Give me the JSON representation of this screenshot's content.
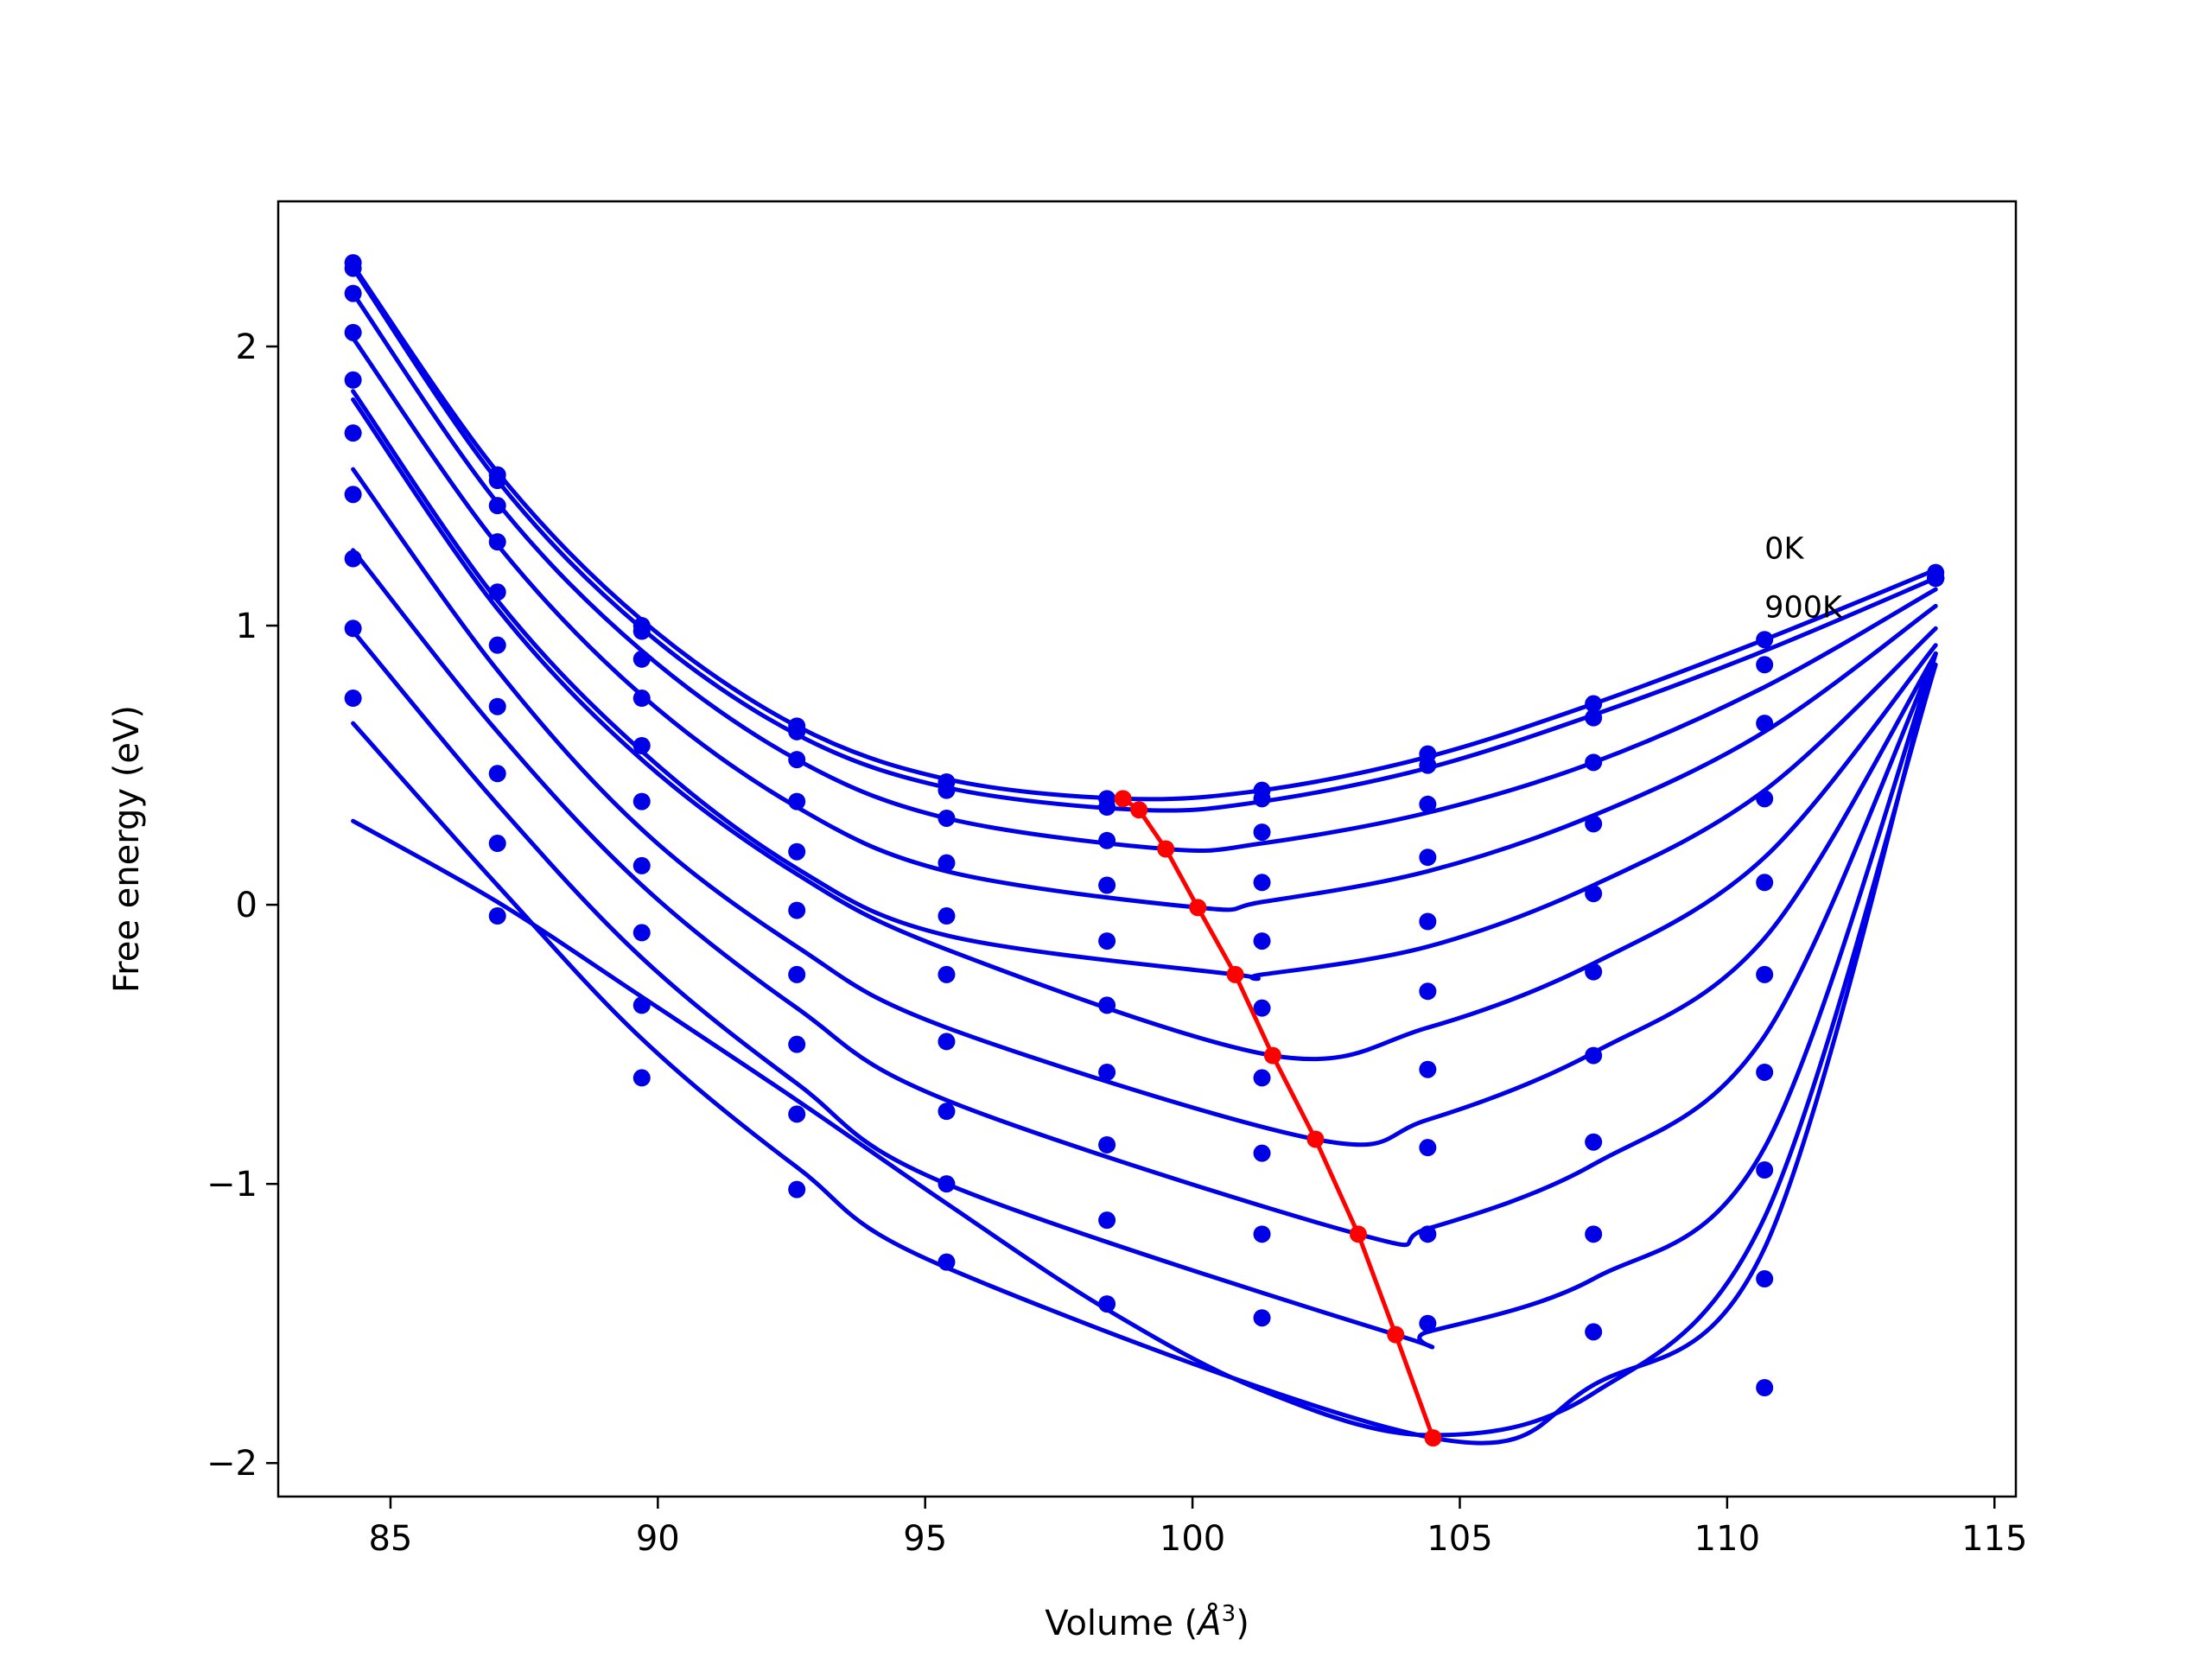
{
  "chart_data": {
    "type": "scatter",
    "title": "",
    "xlabel": "Volume (",
    "xlabel_symbol": "Å",
    "xlabel_exp": "3",
    "xlabel_close": ")",
    "ylabel": "Free energy (eV)",
    "xlim": [
      82.9,
      115.4
    ],
    "ylim": [
      -2.12,
      2.52
    ],
    "xticks": [
      85,
      90,
      95,
      100,
      105,
      110,
      115
    ],
    "yticks": [
      -2,
      -1,
      0,
      1,
      2
    ],
    "ytick_labels": [
      "−2",
      "−1",
      "0",
      "1",
      "2"
    ],
    "grid": false,
    "legend": "none",
    "annotations": [
      {
        "text": "0K",
        "x": 110.7,
        "y": 1.24
      },
      {
        "text": "900K",
        "x": 110.7,
        "y": 1.03
      }
    ],
    "colors": {
      "data": "#0000e6",
      "fit": "#0000e6",
      "minima": "#ff0000"
    },
    "volumes": [
      84.3,
      87.0,
      89.7,
      92.6,
      95.4,
      98.4,
      101.3,
      104.4,
      107.5,
      110.7,
      113.9
    ],
    "series": [
      {
        "values": [
          2.3,
          1.54,
          1.0,
          0.64,
          0.44,
          0.38,
          0.41,
          0.54,
          0.72,
          0.95,
          1.19
        ],
        "fit_curve": [
          [
            84.3,
            2.29
          ],
          [
            87.0,
            1.55
          ],
          [
            89.7,
            1.02
          ],
          [
            92.6,
            0.64
          ],
          [
            95.4,
            0.45
          ],
          [
            98.7,
            0.38
          ],
          [
            101.3,
            0.41
          ],
          [
            104.4,
            0.53
          ],
          [
            107.5,
            0.72
          ],
          [
            110.7,
            0.95
          ],
          [
            113.9,
            1.2
          ]
        ],
        "minimum": [
          98.7,
          0.38
        ]
      },
      {
        "values": [
          2.28,
          1.52,
          0.98,
          0.62,
          0.41,
          0.35,
          0.38,
          0.5,
          0.67,
          0.86,
          1.17
        ],
        "fit_curve": [
          [
            84.3,
            2.28
          ],
          [
            87.0,
            1.52
          ],
          [
            89.7,
            0.99
          ],
          [
            92.6,
            0.61
          ],
          [
            95.4,
            0.42
          ],
          [
            99.0,
            0.34
          ],
          [
            101.3,
            0.37
          ],
          [
            104.4,
            0.49
          ],
          [
            107.5,
            0.68
          ],
          [
            110.7,
            0.91
          ],
          [
            113.9,
            1.17
          ]
        ],
        "minimum": [
          99.0,
          0.34
        ]
      },
      {
        "values": [
          2.19,
          1.43,
          0.88,
          0.52,
          0.31,
          0.23,
          0.26,
          0.36,
          0.51,
          0.65,
          1.17
        ],
        "fit_curve": [
          [
            84.3,
            2.19
          ],
          [
            87.0,
            1.44
          ],
          [
            89.7,
            0.91
          ],
          [
            92.6,
            0.52
          ],
          [
            95.4,
            0.31
          ],
          [
            99.5,
            0.2
          ],
          [
            101.3,
            0.22
          ],
          [
            104.4,
            0.33
          ],
          [
            107.5,
            0.51
          ],
          [
            110.7,
            0.78
          ],
          [
            113.9,
            1.13
          ]
        ],
        "minimum": [
          99.5,
          0.2
        ]
      },
      {
        "values": [
          2.05,
          1.3,
          0.74,
          0.37,
          0.15,
          0.07,
          0.08,
          0.17,
          0.29,
          0.38,
          1.17
        ],
        "fit_curve": [
          [
            84.3,
            2.03
          ],
          [
            87.0,
            1.29
          ],
          [
            89.7,
            0.75
          ],
          [
            92.6,
            0.35
          ],
          [
            95.4,
            0.12
          ],
          [
            100.1,
            -0.01
          ],
          [
            101.3,
            0.01
          ],
          [
            104.4,
            0.12
          ],
          [
            107.5,
            0.32
          ],
          [
            110.7,
            0.62
          ],
          [
            113.9,
            1.07
          ]
        ],
        "minimum": [
          100.1,
          -0.01
        ]
      },
      {
        "values": [
          1.88,
          1.12,
          0.57,
          0.19,
          -0.04,
          -0.13,
          -0.13,
          -0.06,
          0.04,
          0.08,
          1.17
        ],
        "fit_curve": [
          [
            84.3,
            1.84
          ],
          [
            87.0,
            1.09
          ],
          [
            89.7,
            0.55
          ],
          [
            92.6,
            0.13
          ],
          [
            95.4,
            -0.11
          ],
          [
            100.8,
            -0.25
          ],
          [
            101.3,
            -0.25
          ],
          [
            104.4,
            -0.15
          ],
          [
            107.5,
            0.07
          ],
          [
            110.7,
            0.41
          ],
          [
            113.9,
            0.99
          ]
        ],
        "minimum": [
          100.8,
          -0.25
        ]
      },
      {
        "values": [
          1.69,
          0.93,
          0.37,
          -0.02,
          -0.25,
          -0.36,
          -0.37,
          -0.31,
          -0.24,
          -0.25,
          1.17
        ],
        "fit_curve": [
          [
            84.3,
            1.81
          ],
          [
            87.0,
            1.06
          ],
          [
            89.7,
            0.52
          ],
          [
            92.6,
            0.11
          ],
          [
            95.4,
            -0.16
          ],
          [
            101.5,
            -0.54
          ],
          [
            104.4,
            -0.44
          ],
          [
            107.5,
            -0.21
          ],
          [
            110.7,
            0.17
          ],
          [
            113.9,
            0.93
          ]
        ],
        "minimum": [
          101.5,
          -0.54
        ]
      },
      {
        "values": [
          1.47,
          0.71,
          0.14,
          -0.25,
          -0.49,
          -0.6,
          -0.62,
          -0.59,
          -0.54,
          -0.6,
          1.17
        ],
        "fit_curve": [
          [
            84.3,
            1.56
          ],
          [
            87.0,
            0.84
          ],
          [
            89.7,
            0.27
          ],
          [
            92.6,
            -0.15
          ],
          [
            95.4,
            -0.44
          ],
          [
            102.3,
            -0.84
          ],
          [
            104.4,
            -0.77
          ],
          [
            107.5,
            -0.53
          ],
          [
            110.7,
            -0.12
          ],
          [
            113.9,
            0.9
          ]
        ],
        "minimum": [
          102.3,
          -0.84
        ]
      },
      {
        "values": [
          1.24,
          0.47,
          -0.1,
          -0.5,
          -0.74,
          -0.86,
          -0.89,
          -0.87,
          -0.85,
          -0.95,
          1.17
        ],
        "fit_curve": [
          [
            84.3,
            1.27
          ],
          [
            87.0,
            0.62
          ],
          [
            89.7,
            0.07
          ],
          [
            92.6,
            -0.37
          ],
          [
            95.4,
            -0.7
          ],
          [
            103.1,
            -1.18
          ],
          [
            104.4,
            -1.16
          ],
          [
            107.5,
            -0.93
          ],
          [
            110.7,
            -0.47
          ],
          [
            113.9,
            0.9
          ]
        ],
        "minimum": [
          103.1,
          -1.18
        ]
      },
      {
        "values": [
          0.99,
          0.22,
          -0.36,
          -0.75,
          -1.0,
          -1.13,
          -1.18,
          -1.18,
          -1.18,
          -1.34,
          1.17
        ],
        "fit_curve": [
          [
            84.3,
            0.98
          ],
          [
            87.0,
            0.36
          ],
          [
            89.7,
            -0.19
          ],
          [
            92.6,
            -0.64
          ],
          [
            95.4,
            -1.0
          ],
          [
            103.8,
            -1.54
          ],
          [
            104.4,
            -1.53
          ],
          [
            107.5,
            -1.34
          ],
          [
            110.7,
            -0.87
          ],
          [
            113.9,
            0.9
          ]
        ],
        "minimum": [
          103.8,
          -1.54
        ]
      },
      {
        "values": [
          0.74,
          -0.04,
          -0.62,
          -1.02,
          -1.28,
          -1.43,
          -1.48,
          -1.5,
          -1.53,
          -1.73,
          1.17
        ],
        "fit_curve": [
          [
            84.3,
            0.65
          ],
          [
            87.0,
            0.07
          ],
          [
            89.7,
            -0.48
          ],
          [
            92.6,
            -0.94
          ],
          [
            95.4,
            -1.3
          ],
          [
            104.5,
            -1.91
          ],
          [
            107.5,
            -1.72
          ],
          [
            110.7,
            -1.23
          ],
          [
            113.9,
            0.9
          ]
        ],
        "minimum": [
          104.5,
          -1.91
        ]
      },
      {
        "values": [
          null,
          null,
          null,
          null,
          null,
          null,
          null,
          null,
          null,
          null,
          null
        ],
        "fit_curve": [
          [
            84.3,
            0.3
          ],
          [
            87.0,
            0.01
          ],
          [
            89.7,
            -0.33
          ],
          [
            92.6,
            -0.7
          ],
          [
            95.4,
            -1.07
          ],
          [
            98.4,
            -1.45
          ],
          [
            101.3,
            -1.74
          ],
          [
            104.4,
            -1.9
          ],
          [
            107.5,
            -1.75
          ],
          [
            110.7,
            -1.12
          ],
          [
            113.9,
            0.86
          ]
        ],
        "minimum": null
      }
    ],
    "minima_line": [
      [
        98.7,
        0.38
      ],
      [
        99.0,
        0.34
      ],
      [
        99.5,
        0.2
      ],
      [
        100.1,
        -0.01
      ],
      [
        100.8,
        -0.25
      ],
      [
        101.5,
        -0.54
      ],
      [
        102.3,
        -0.84
      ],
      [
        103.1,
        -1.18
      ],
      [
        103.8,
        -1.54
      ],
      [
        104.5,
        -1.91
      ]
    ]
  }
}
